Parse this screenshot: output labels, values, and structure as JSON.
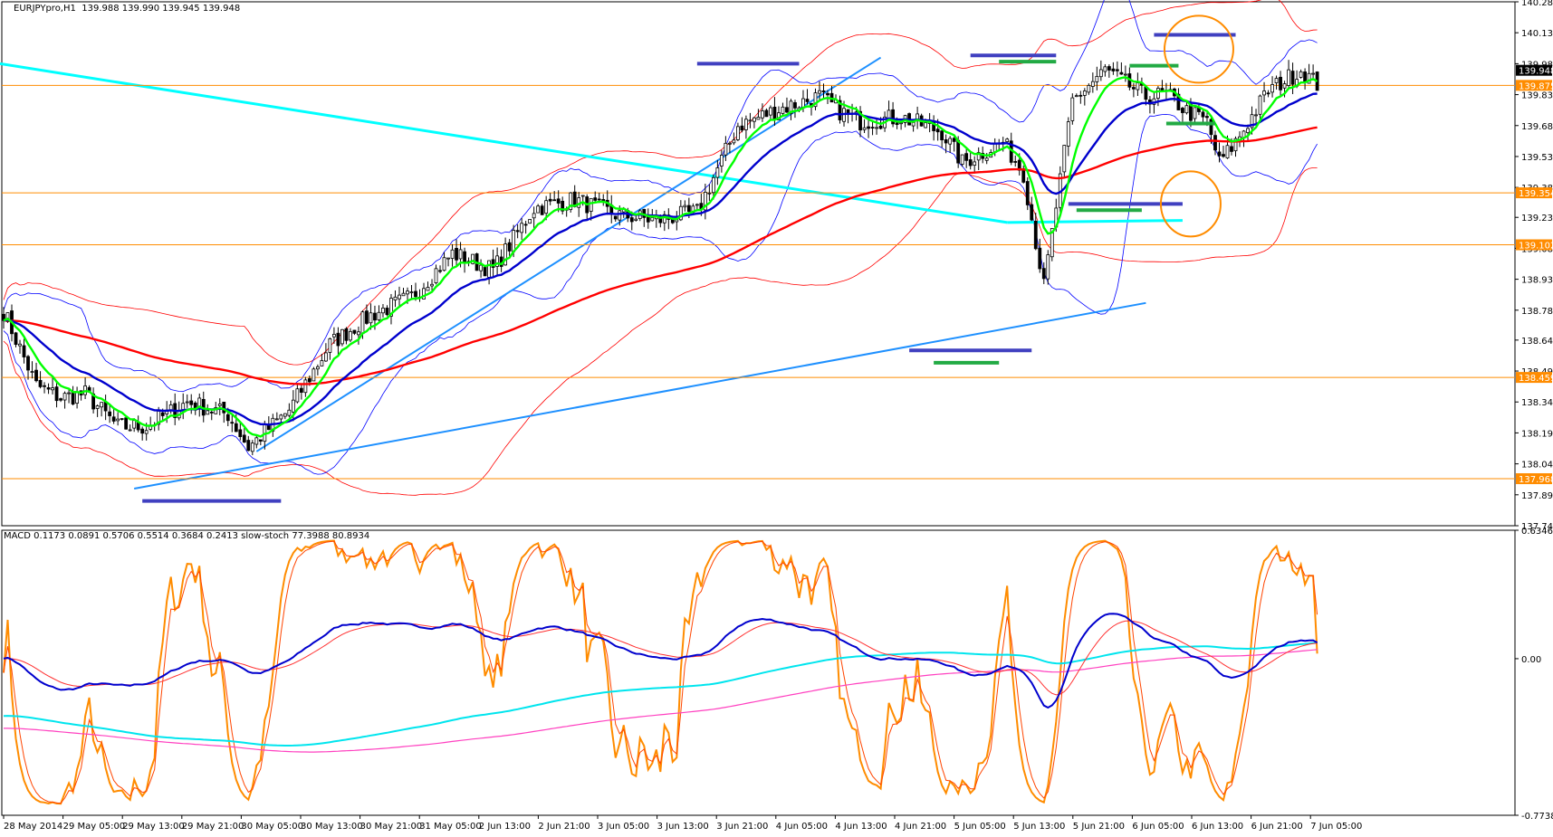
{
  "chart_data": [
    {
      "type": "candlestick",
      "symbol_label": "EURJPYpro,H1",
      "ohlc_readout": "139.988 139.990 139.945 139.948",
      "ylim": [
        137.74,
        140.28
      ],
      "y_ticks": [
        140.28,
        140.13,
        139.98,
        139.83,
        139.68,
        139.53,
        139.38,
        139.235,
        139.085,
        138.935,
        138.785,
        138.64,
        138.49,
        138.34,
        138.19,
        138.04,
        137.89,
        137.74
      ],
      "y_tick_labels": [
        "140.280",
        "140.130",
        "139.980",
        "139.830",
        "139.680",
        "139.530",
        "139.380",
        "139.235",
        "139.085",
        "138.935",
        "138.785",
        "138.640",
        "138.490",
        "138.340",
        "138.190",
        "138.040",
        "137.890",
        "137.740"
      ],
      "x_tick_labels": [
        "28 May 2014",
        "29 May 05:00",
        "29 May 13:00",
        "29 May 21:00",
        "30 May 05:00",
        "30 May 13:00",
        "30 May 21:00",
        "31 May 05:00",
        "2 Jun 13:00",
        "2 Jun 21:00",
        "3 Jun 05:00",
        "3 Jun 13:00",
        "3 Jun 21:00",
        "4 Jun 05:00",
        "4 Jun 13:00",
        "4 Jun 21:00",
        "5 Jun 05:00",
        "5 Jun 13:00",
        "5 Jun 21:00",
        "6 Jun 05:00",
        "6 Jun 13:00",
        "6 Jun 21:00",
        "7 Jun 05:00"
      ],
      "current_price": "139.948",
      "horizontal_levels": [
        {
          "value": 139.875,
          "label": "139.875",
          "color": "#ff8c00"
        },
        {
          "value": 139.354,
          "label": "139.354",
          "color": "#ff8c00"
        },
        {
          "value": 139.102,
          "label": "139.102",
          "color": "#ff8c00"
        },
        {
          "value": 138.459,
          "label": "138.459",
          "color": "#ff8c00"
        },
        {
          "value": 137.968,
          "label": "137.968",
          "color": "#ff8c00"
        }
      ],
      "price_anchors": [
        [
          0,
          138.78
        ],
        [
          8,
          138.42
        ],
        [
          14,
          138.36
        ],
        [
          20,
          138.38
        ],
        [
          28,
          138.22
        ],
        [
          35,
          138.22
        ],
        [
          45,
          138.34
        ],
        [
          55,
          138.28
        ],
        [
          60,
          138.12
        ],
        [
          70,
          138.3
        ],
        [
          80,
          138.62
        ],
        [
          90,
          138.76
        ],
        [
          100,
          138.85
        ],
        [
          110,
          139.06
        ],
        [
          120,
          138.98
        ],
        [
          130,
          139.28
        ],
        [
          140,
          139.32
        ],
        [
          150,
          139.25
        ],
        [
          160,
          139.22
        ],
        [
          170,
          139.26
        ],
        [
          180,
          139.68
        ],
        [
          190,
          139.76
        ],
        [
          200,
          139.82
        ],
        [
          205,
          139.75
        ],
        [
          210,
          139.7
        ],
        [
          220,
          139.72
        ],
        [
          230,
          139.65
        ],
        [
          235,
          139.5
        ],
        [
          245,
          139.6
        ],
        [
          250,
          139.45
        ],
        [
          255,
          138.9
        ],
        [
          262,
          139.8
        ],
        [
          270,
          139.95
        ],
        [
          280,
          139.82
        ],
        [
          285,
          139.83
        ],
        [
          290,
          139.75
        ],
        [
          295,
          139.7
        ],
        [
          298,
          139.5
        ],
        [
          302,
          139.6
        ],
        [
          310,
          139.85
        ],
        [
          318,
          139.95
        ],
        [
          322,
          139.88
        ]
      ],
      "candle_count": 323,
      "indicator_colors": {
        "ema_fast": "#00ff00",
        "ema_mid": "#0000cd",
        "ema_slow": "#ff0000",
        "bands_upper_lower": "#0000ff",
        "bands_outer": "#ff0000",
        "trendline_cyan": "#00ffff",
        "trendline_blue": "#1e90ff",
        "level_marks_blue": "#4040c0",
        "level_marks_green": "#22aa44",
        "circles": "#ff8c00"
      }
    },
    {
      "type": "line",
      "indicator_label": "MACD 0.1173 0.0891 0.5706 0.5514 0.3684 0.2413  slow-stoch 77.3988 80.8934",
      "ylim": [
        -0.7738,
        0.6346
      ],
      "y_ticks": [
        0.6346,
        0.0,
        -0.7738
      ],
      "y_tick_labels": [
        "0.6346",
        "0.00",
        "-0.7738"
      ],
      "series_colors": {
        "macd": "#0000cd",
        "signal": "#ff3030",
        "stoch_k": "#ff8c00",
        "stoch_d": "#ff4500",
        "slow_cyan": "#00e5ee",
        "slow_magenta": "#ff40c0"
      }
    }
  ]
}
